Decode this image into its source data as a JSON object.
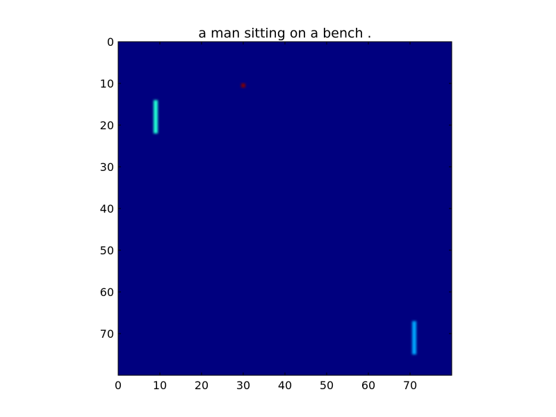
{
  "chart_data": {
    "type": "heatmap",
    "title": "a man sitting on a bench .",
    "xlabel": "",
    "ylabel": "",
    "grid": false,
    "legend": "none",
    "colormap": "jet",
    "xlim": [
      0,
      80
    ],
    "ylim": [
      80,
      0
    ],
    "y_axis_inverted": true,
    "xticks": [
      "0",
      "10",
      "20",
      "30",
      "40",
      "50",
      "60",
      "70"
    ],
    "yticks": [
      "0",
      "10",
      "20",
      "30",
      "40",
      "50",
      "60",
      "70"
    ],
    "background_value": 0.0,
    "background_color": "#00007f",
    "cells": [
      {
        "name": "cell-cyan",
        "x": 9,
        "y_start": 14,
        "y_end": 22,
        "value": 0.55,
        "color": "#22ffd4"
      },
      {
        "name": "cell-blue",
        "x": 71,
        "y_start": 67,
        "y_end": 75,
        "value": 0.3,
        "color": "#00a8ff"
      },
      {
        "name": "cell-darkred",
        "x": 30,
        "y_start": 10,
        "y_end": 11,
        "value": 1.0,
        "color": "#7f0000"
      }
    ]
  }
}
